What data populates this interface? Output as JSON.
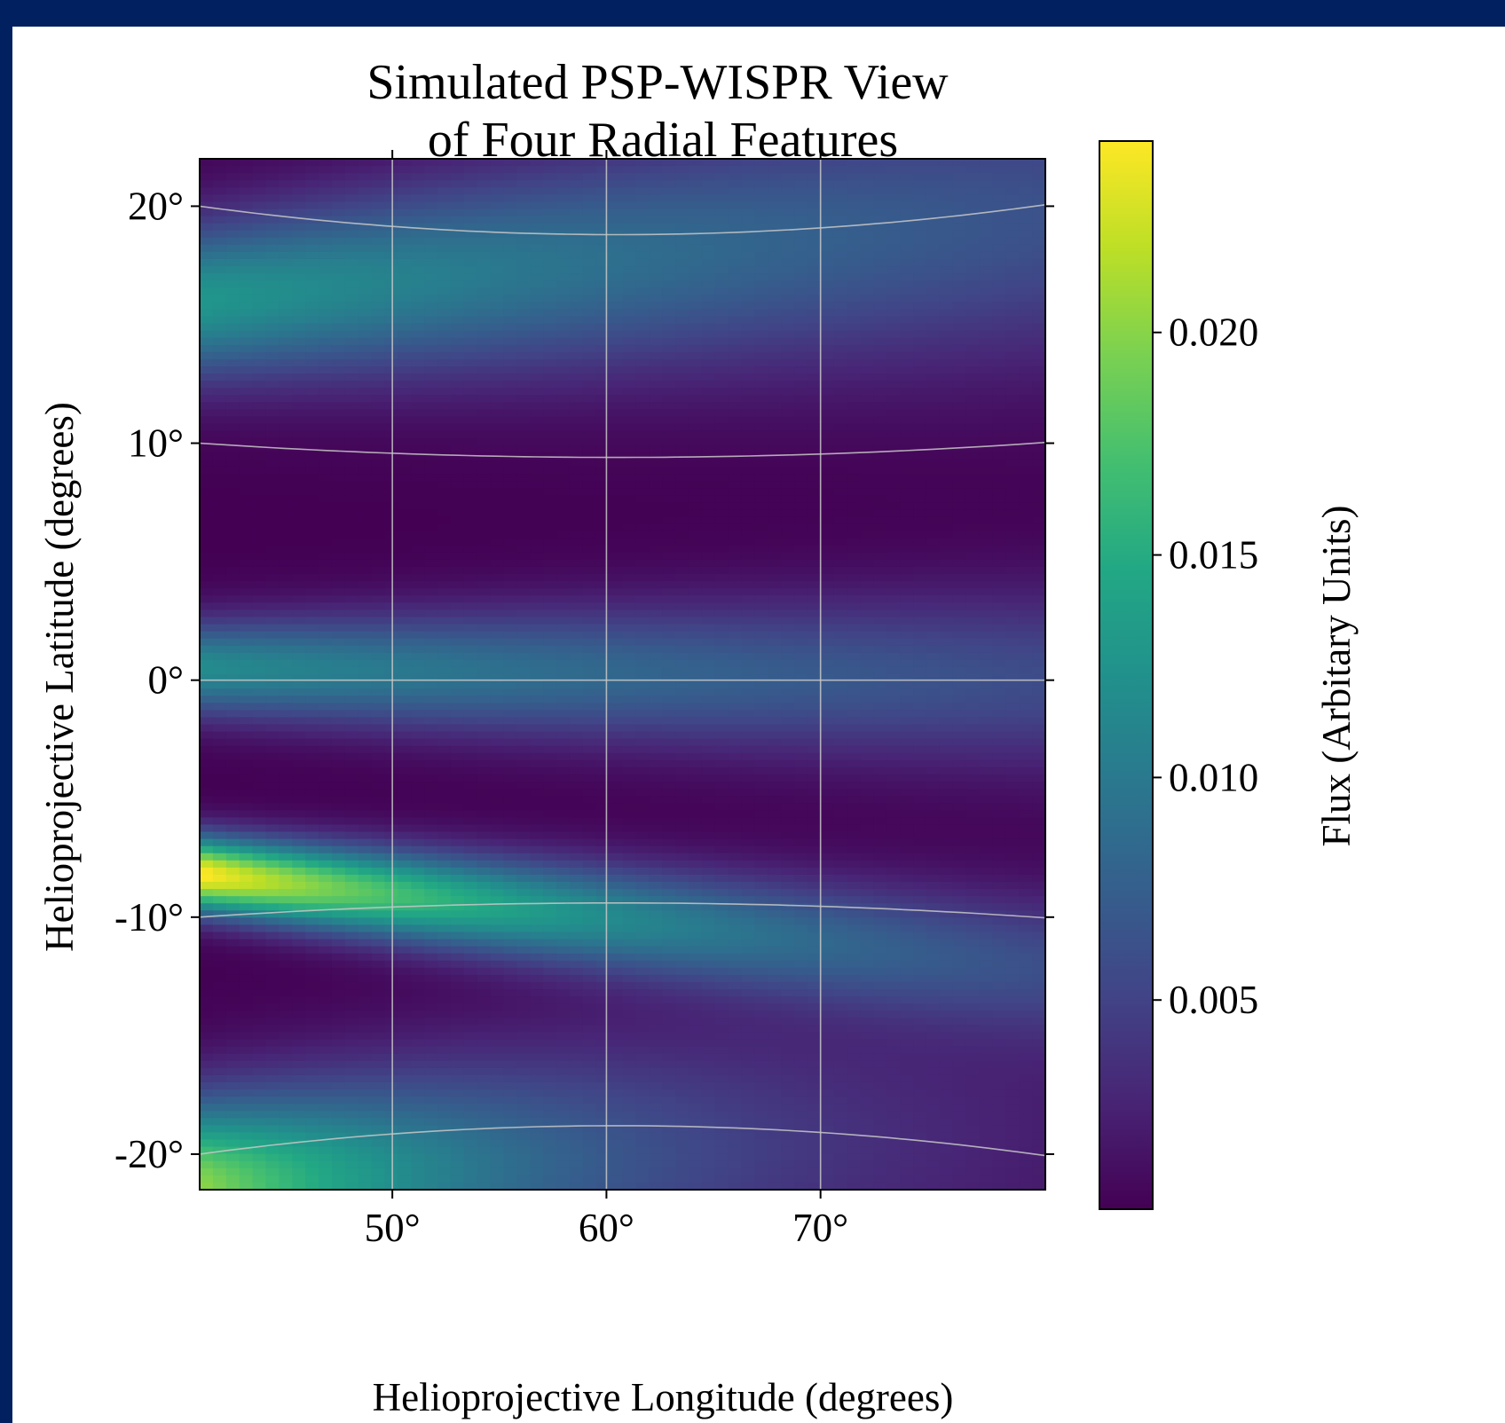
{
  "chart_data": {
    "type": "heatmap",
    "title": [
      "Simulated PSP-WISPR View",
      "of Four Radial Features"
    ],
    "xlabel": "Helioprojective Longitude (degrees)",
    "ylabel": "Helioprojective Latitude (degrees)",
    "xlim": [
      41,
      80.5
    ],
    "ylim": [
      -21.5,
      22
    ],
    "x_ticks": [
      {
        "value": 50,
        "label": "50°"
      },
      {
        "value": 60,
        "label": "60°"
      },
      {
        "value": 70,
        "label": "70°"
      }
    ],
    "y_ticks": [
      {
        "value": 20,
        "label": "20°"
      },
      {
        "value": 10,
        "label": "10°"
      },
      {
        "value": 0,
        "label": "0°"
      },
      {
        "value": -10,
        "label": "-10°"
      },
      {
        "value": -20,
        "label": "-20°"
      }
    ],
    "colorbar": {
      "label": "Flux (Arbitary Units)",
      "colormap": "viridis",
      "range": [
        0.0003,
        0.0243
      ],
      "ticks": [
        {
          "value": 0.005,
          "label": "0.005"
        },
        {
          "value": 0.01,
          "label": "0.010"
        },
        {
          "value": 0.015,
          "label": "0.015"
        },
        {
          "value": 0.02,
          "label": "0.020"
        }
      ]
    },
    "features": [
      {
        "lat_at_x41": 16,
        "lat_at_x80": 19.5,
        "width_deg": 2.3,
        "peak_flux": 0.0125,
        "end_flux": 0.006
      },
      {
        "lat_at_x41": 0.5,
        "lat_at_x80": 0.0,
        "width_deg": 1.4,
        "peak_flux": 0.0115,
        "end_flux": 0.0055
      },
      {
        "lat_at_x41": -8.2,
        "lat_at_x80": -12.0,
        "width_deg": 1.1,
        "peak_flux": 0.0243,
        "end_flux": 0.005
      },
      {
        "lat_at_x41": -21.5,
        "lat_at_x80": -19.0,
        "width_deg": 2.6,
        "peak_flux": 0.02,
        "end_flux": 0.002
      }
    ],
    "grid": true,
    "grid_color": "#c8c8c8",
    "background_flux": 0.0003
  }
}
